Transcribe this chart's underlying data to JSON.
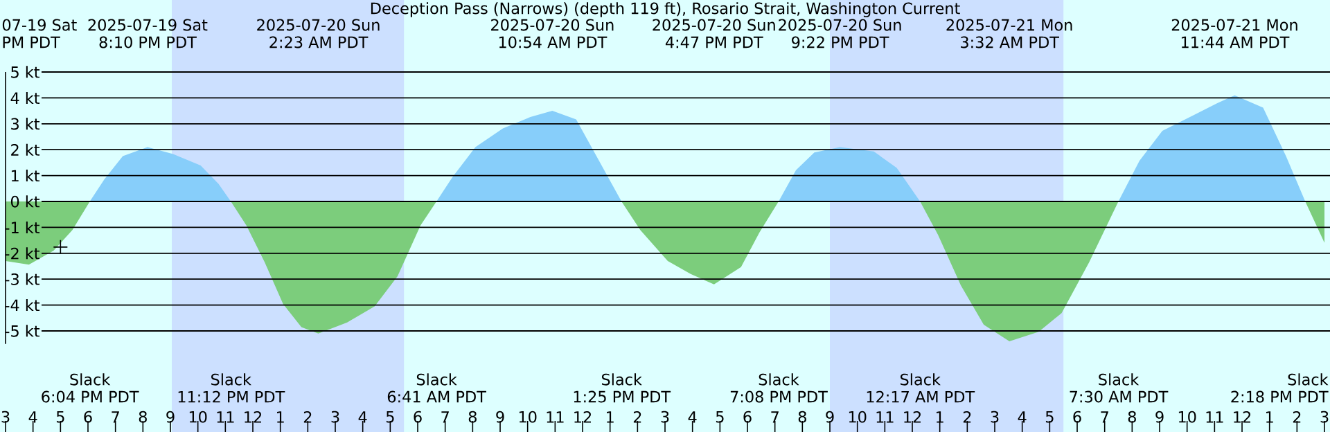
{
  "chart_data": {
    "type": "area",
    "title": "Deception Pass (Narrows) (depth 119 ft), Rosario Strait, Washington Current",
    "xlim": [
      "2025-07-19T15:00",
      "2025-07-21T15:00"
    ],
    "ylim": [
      -5.5,
      5
    ],
    "xticks": [
      {
        "value": "2025-07-19T15:00",
        "label": "3"
      },
      {
        "value": "2025-07-19T16:00",
        "label": "4"
      },
      {
        "value": "2025-07-19T17:00",
        "label": "5"
      },
      {
        "value": "2025-07-19T18:00",
        "label": "6"
      },
      {
        "value": "2025-07-19T19:00",
        "label": "7"
      },
      {
        "value": "2025-07-19T20:00",
        "label": "8"
      },
      {
        "value": "2025-07-19T21:00",
        "label": "9"
      },
      {
        "value": "2025-07-19T22:00",
        "label": "10"
      },
      {
        "value": "2025-07-19T23:00",
        "label": "11"
      },
      {
        "value": "2025-07-20T00:00",
        "label": "12"
      },
      {
        "value": "2025-07-20T01:00",
        "label": "1"
      },
      {
        "value": "2025-07-20T02:00",
        "label": "2"
      },
      {
        "value": "2025-07-20T03:00",
        "label": "3"
      },
      {
        "value": "2025-07-20T04:00",
        "label": "4"
      },
      {
        "value": "2025-07-20T05:00",
        "label": "5"
      },
      {
        "value": "2025-07-20T06:00",
        "label": "6"
      },
      {
        "value": "2025-07-20T07:00",
        "label": "7"
      },
      {
        "value": "2025-07-20T08:00",
        "label": "8"
      },
      {
        "value": "2025-07-20T09:00",
        "label": "9"
      },
      {
        "value": "2025-07-20T10:00",
        "label": "10"
      },
      {
        "value": "2025-07-20T11:00",
        "label": "11"
      },
      {
        "value": "2025-07-20T12:00",
        "label": "12"
      },
      {
        "value": "2025-07-20T13:00",
        "label": "1"
      },
      {
        "value": "2025-07-20T14:00",
        "label": "2"
      },
      {
        "value": "2025-07-20T15:00",
        "label": "3"
      },
      {
        "value": "2025-07-20T16:00",
        "label": "4"
      },
      {
        "value": "2025-07-20T17:00",
        "label": "5"
      },
      {
        "value": "2025-07-20T18:00",
        "label": "6"
      },
      {
        "value": "2025-07-20T19:00",
        "label": "7"
      },
      {
        "value": "2025-07-20T20:00",
        "label": "8"
      },
      {
        "value": "2025-07-20T21:00",
        "label": "9"
      },
      {
        "value": "2025-07-20T22:00",
        "label": "10"
      },
      {
        "value": "2025-07-20T23:00",
        "label": "11"
      },
      {
        "value": "2025-07-21T00:00",
        "label": "12"
      },
      {
        "value": "2025-07-21T01:00",
        "label": "1"
      },
      {
        "value": "2025-07-21T02:00",
        "label": "2"
      },
      {
        "value": "2025-07-21T03:00",
        "label": "3"
      },
      {
        "value": "2025-07-21T04:00",
        "label": "4"
      },
      {
        "value": "2025-07-21T05:00",
        "label": "5"
      },
      {
        "value": "2025-07-21T06:00",
        "label": "6"
      },
      {
        "value": "2025-07-21T07:00",
        "label": "7"
      },
      {
        "value": "2025-07-21T08:00",
        "label": "8"
      },
      {
        "value": "2025-07-21T09:00",
        "label": "9"
      },
      {
        "value": "2025-07-21T10:00",
        "label": "10"
      },
      {
        "value": "2025-07-21T11:00",
        "label": "11"
      },
      {
        "value": "2025-07-21T12:00",
        "label": "12"
      },
      {
        "value": "2025-07-21T13:00",
        "label": "1"
      },
      {
        "value": "2025-07-21T14:00",
        "label": "2"
      },
      {
        "value": "2025-07-21T15:00",
        "label": "3"
      }
    ],
    "yticks": [
      {
        "value": 5,
        "label": "5 kt"
      },
      {
        "value": 4,
        "label": "4 kt"
      },
      {
        "value": 3,
        "label": "3 kt"
      },
      {
        "value": 2,
        "label": "2 kt"
      },
      {
        "value": 1,
        "label": "1 kt"
      },
      {
        "value": 0,
        "label": "0 kt"
      },
      {
        "value": -1,
        "label": "-1 kt"
      },
      {
        "value": -2,
        "label": "-2 kt"
      },
      {
        "value": -3,
        "label": "-3 kt"
      },
      {
        "value": -4,
        "label": "-4 kt"
      },
      {
        "value": -5,
        "label": "-5 kt"
      }
    ],
    "grid": "y",
    "bands": [
      {
        "axis": "x",
        "from": "2025-07-19T21:03",
        "to": "2025-07-20T05:30",
        "color": "#cce0ff"
      },
      {
        "axis": "x",
        "from": "2025-07-20T21:00",
        "to": "2025-07-21T05:30",
        "color": "#cce0ff"
      }
    ],
    "x": [
      "2025-07-19T15:00",
      "2025-07-19T15:51",
      "2025-07-19T16:45",
      "2025-07-19T17:26",
      "2025-07-19T18:04",
      "2025-07-19T18:36",
      "2025-07-19T19:16",
      "2025-07-19T20:10",
      "2025-07-19T21:06",
      "2025-07-19T22:06",
      "2025-07-19T22:45",
      "2025-07-19T23:12",
      "2025-07-19T23:46",
      "2025-07-20T00:26",
      "2025-07-20T01:06",
      "2025-07-20T01:46",
      "2025-07-20T02:23",
      "2025-07-20T03:26",
      "2025-07-20T04:26",
      "2025-07-20T05:16",
      "2025-07-20T06:06",
      "2025-07-20T06:41",
      "2025-07-20T07:16",
      "2025-07-20T08:06",
      "2025-07-20T09:06",
      "2025-07-20T10:06",
      "2025-07-20T10:54",
      "2025-07-20T11:46",
      "2025-07-20T12:36",
      "2025-07-20T13:25",
      "2025-07-20T14:06",
      "2025-07-20T15:06",
      "2025-07-20T15:56",
      "2025-07-20T16:47",
      "2025-07-20T17:46",
      "2025-07-20T18:26",
      "2025-07-20T19:08",
      "2025-07-20T19:46",
      "2025-07-20T20:26",
      "2025-07-20T21:22",
      "2025-07-20T22:36",
      "2025-07-20T23:26",
      "2025-07-21T00:17",
      "2025-07-21T00:56",
      "2025-07-21T01:46",
      "2025-07-21T02:36",
      "2025-07-21T03:32",
      "2025-07-21T04:36",
      "2025-07-21T05:26",
      "2025-07-21T06:26",
      "2025-07-21T07:30",
      "2025-07-21T08:16",
      "2025-07-21T09:06",
      "2025-07-21T10:16",
      "2025-07-21T11:06",
      "2025-07-21T11:44",
      "2025-07-21T12:46",
      "2025-07-21T13:36",
      "2025-07-21T14:18",
      "2025-07-21T15:00"
    ],
    "series": [
      {
        "color": "#87cefa",
        "values": [
          null,
          null,
          null,
          null,
          0,
          0.86,
          1.75,
          2.1,
          1.83,
          1.39,
          0.68,
          0,
          null,
          null,
          null,
          null,
          null,
          null,
          null,
          null,
          null,
          0,
          0.94,
          2.1,
          2.82,
          3.26,
          3.5,
          3.17,
          1.57,
          0,
          null,
          null,
          null,
          null,
          null,
          null,
          0,
          1.21,
          1.89,
          2.1,
          1.93,
          1.3,
          0,
          null,
          null,
          null,
          null,
          null,
          null,
          null,
          0,
          1.57,
          2.73,
          3.35,
          3.8,
          4.1,
          3.62,
          1.75,
          0,
          null
        ]
      },
      {
        "color": "#7ccd7c",
        "values": [
          -2.3,
          -2.44,
          -1.9,
          -1.1,
          0,
          null,
          null,
          null,
          null,
          null,
          null,
          0,
          -0.93,
          -2.35,
          -3.96,
          -4.85,
          -5.1,
          -4.67,
          -4.05,
          -2.89,
          -0.93,
          0,
          null,
          null,
          null,
          null,
          null,
          null,
          null,
          0,
          -1.1,
          -2.3,
          -2.8,
          -3.2,
          -2.53,
          -1.2,
          0,
          null,
          null,
          null,
          null,
          null,
          0,
          -1.28,
          -3.24,
          -4.76,
          -5.4,
          -5.03,
          -4.31,
          -2.35,
          0,
          null,
          null,
          null,
          null,
          null,
          null,
          null,
          0,
          -1.6
        ]
      },
      {
        "type": "scatter",
        "color": "#000000",
        "marker": "cross",
        "x": [
          "2025-07-19T17:00"
        ],
        "values": [
          -1.76
        ]
      }
    ],
    "annotations": [
      "07-19 Sat",
      "PM PDT",
      "2025-07-19 Sat",
      "8:10 PM PDT",
      "2025-07-20 Sun",
      "2:23 AM PDT",
      "2025-07-20 Sun",
      "10:54 AM PDT",
      "2025-07-20 Sun",
      "4:47 PM PDT",
      "2025-07-20 Sun",
      "9:22 PM PDT",
      "2025-07-21 Mon",
      "3:32 AM PDT",
      "2025-07-21 Mon",
      "11:44 AM PDT",
      "Slack",
      "6:04 PM PDT",
      "Slack",
      "11:12 PM PDT",
      "Slack",
      "6:41 AM PDT",
      "Slack",
      "1:25 PM PDT",
      "Slack",
      "7:08 PM PDT",
      "Slack",
      "12:17 AM PDT",
      "Slack",
      "7:30 AM PDT",
      "Slack",
      "2:18 PM PDT"
    ]
  }
}
